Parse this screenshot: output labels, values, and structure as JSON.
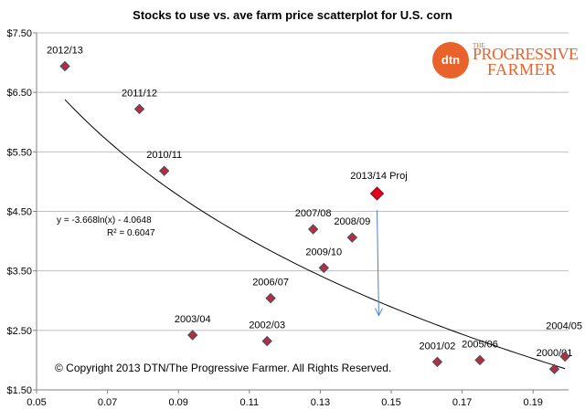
{
  "chart_data": {
    "type": "scatter",
    "title": "Stocks to use vs. ave farm price scatterplot for U.S. corn",
    "xlim": [
      0.05,
      0.2
    ],
    "ylim": [
      1.5,
      7.5
    ],
    "x_ticks": [
      "0.05",
      "0.07",
      "0.09",
      "0.11",
      "0.13",
      "0.15",
      "0.17",
      "0.19"
    ],
    "y_ticks": [
      "$1.50",
      "$2.50",
      "$3.50",
      "$4.50",
      "$5.50",
      "$6.50",
      "$7.50"
    ],
    "points": [
      {
        "label": "2012/13",
        "x": 0.058,
        "y": 6.94
      },
      {
        "label": "2011/12",
        "x": 0.079,
        "y": 6.22
      },
      {
        "label": "2010/11",
        "x": 0.086,
        "y": 5.18
      },
      {
        "label": "2003/04",
        "x": 0.094,
        "y": 2.42
      },
      {
        "label": "2002/03",
        "x": 0.115,
        "y": 2.32
      },
      {
        "label": "2006/07",
        "x": 0.116,
        "y": 3.04
      },
      {
        "label": "2007/08",
        "x": 0.128,
        "y": 4.2
      },
      {
        "label": "2009/10",
        "x": 0.131,
        "y": 3.55
      },
      {
        "label": "2008/09",
        "x": 0.139,
        "y": 4.06
      },
      {
        "label": "2001/02",
        "x": 0.163,
        "y": 1.97
      },
      {
        "label": "2005/06",
        "x": 0.175,
        "y": 2.0
      },
      {
        "label": "2000/01",
        "x": 0.196,
        "y": 1.85
      },
      {
        "label": "2004/05",
        "x": 0.199,
        "y": 2.06
      }
    ],
    "highlight": {
      "label": "2013/14 Proj",
      "x": 0.146,
      "y": 4.8
    },
    "arrow": {
      "from": {
        "x": 0.146,
        "y": 4.52
      },
      "to": {
        "x": 0.1465,
        "y": 2.75
      }
    },
    "trendline": {
      "a": -3.668,
      "b": -4.0648,
      "x_start": 0.058,
      "x_end": 0.199
    },
    "trend_equation": "y = -3.668ln(x) - 4.0648",
    "r_squared": "R² = 0.6047",
    "colors": {
      "marker": "#b0303e",
      "marker_edge": "#4a4a6a",
      "highlight": "#e3001b",
      "arrow": "#4f81bd",
      "trend": "#000000",
      "grid": "#bfbfbf"
    }
  },
  "copyright": "© Copyright 2013 DTN/The Progressive Farmer. All Rights Reserved.",
  "logo": {
    "mark": "dtn",
    "the": "THE",
    "line1": "PROGRESSIVE",
    "line2": "FARMER"
  }
}
